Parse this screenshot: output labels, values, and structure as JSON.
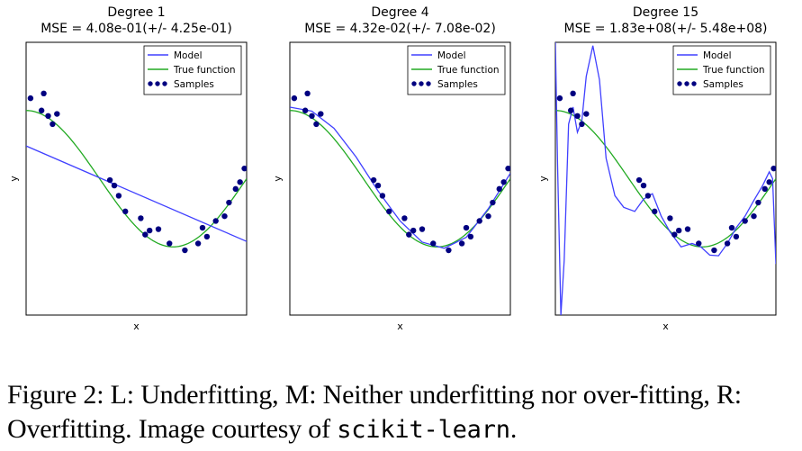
{
  "chart_data": [
    {
      "type": "line",
      "title": "Degree 1",
      "subtitle": "MSE = 4.08e-01(+/- 4.25e-01)",
      "xlabel": "x",
      "ylabel": "y",
      "xlim": [
        0,
        1
      ],
      "ylim": [
        -2,
        2
      ],
      "grid": false,
      "legend_position": "top-right",
      "series": [
        {
          "name": "Model",
          "color": "#4040ff",
          "x": [
            0,
            1
          ],
          "y": [
            0.48,
            -0.92
          ]
        },
        {
          "name": "True function",
          "color": "#22aa22",
          "function": "cos(1.5*pi*x)"
        },
        {
          "name": "Samples",
          "color": "#000080",
          "kind": "scatter"
        }
      ]
    },
    {
      "type": "line",
      "title": "Degree 4",
      "subtitle": "MSE = 4.32e-02(+/- 7.08e-02)",
      "xlabel": "x",
      "ylabel": "y",
      "xlim": [
        0,
        1
      ],
      "ylim": [
        -2,
        2
      ],
      "grid": false,
      "legend_position": "top-right",
      "series": [
        {
          "name": "Model",
          "color": "#4040ff",
          "x": [
            0,
            0.1,
            0.2,
            0.3,
            0.4,
            0.5,
            0.6,
            0.7,
            0.8,
            0.9,
            1.0
          ],
          "y": [
            1.05,
            0.99,
            0.74,
            0.32,
            -0.18,
            -0.62,
            -0.93,
            -1.02,
            -0.86,
            -0.44,
            0.08
          ]
        },
        {
          "name": "True function",
          "color": "#22aa22",
          "function": "cos(1.5*pi*x)"
        },
        {
          "name": "Samples",
          "color": "#000080",
          "kind": "scatter"
        }
      ]
    },
    {
      "type": "line",
      "title": "Degree 15",
      "subtitle": "MSE = 1.83e+08(+/- 5.48e+08)",
      "xlabel": "x",
      "ylabel": "y",
      "xlim": [
        0,
        1
      ],
      "ylim": [
        -2,
        2
      ],
      "grid": false,
      "legend_position": "top-right",
      "series": [
        {
          "name": "Model",
          "color": "#4040ff",
          "x": [
            0,
            0.01,
            0.025,
            0.04,
            0.06,
            0.08,
            0.1,
            0.12,
            0.14,
            0.17,
            0.2,
            0.23,
            0.27,
            0.31,
            0.36,
            0.4,
            0.44,
            0.48,
            0.52,
            0.57,
            0.62,
            0.66,
            0.7,
            0.74,
            0.78,
            0.82,
            0.86,
            0.9,
            0.94,
            0.97,
            0.985,
            1.0
          ],
          "y": [
            2.0,
            0.2,
            -2.0,
            -1.2,
            0.8,
            1.05,
            0.68,
            0.85,
            1.5,
            1.95,
            1.45,
            0.3,
            -0.25,
            -0.42,
            -0.48,
            -0.3,
            -0.22,
            -0.55,
            -0.78,
            -1.0,
            -0.95,
            -1.0,
            -1.12,
            -1.13,
            -0.95,
            -0.72,
            -0.55,
            -0.32,
            -0.1,
            0.1,
            0.0,
            -1.25
          ]
        },
        {
          "name": "True function",
          "color": "#22aa22",
          "function": "cos(1.5*pi*x)"
        },
        {
          "name": "Samples",
          "color": "#000080",
          "kind": "scatter"
        }
      ]
    }
  ],
  "samples": {
    "x": [
      0.02,
      0.07,
      0.08,
      0.1,
      0.12,
      0.14,
      0.38,
      0.4,
      0.42,
      0.45,
      0.52,
      0.54,
      0.56,
      0.6,
      0.65,
      0.72,
      0.78,
      0.8,
      0.82,
      0.86,
      0.9,
      0.92,
      0.95,
      0.97,
      0.99
    ],
    "y": [
      1.18,
      1.0,
      1.25,
      0.92,
      0.8,
      0.95,
      -0.02,
      -0.1,
      -0.25,
      -0.48,
      -0.58,
      -0.82,
      -0.76,
      -0.74,
      -0.95,
      -1.05,
      -0.95,
      -0.72,
      -0.85,
      -0.62,
      -0.55,
      -0.35,
      -0.15,
      -0.05,
      0.15
    ]
  },
  "caption": {
    "main": "Figure 2: L: Underfitting, M: Neither underfitting nor over-fitting, R: Overfitting. Image courtesy of ",
    "code": "scikit-learn",
    "end": "."
  }
}
